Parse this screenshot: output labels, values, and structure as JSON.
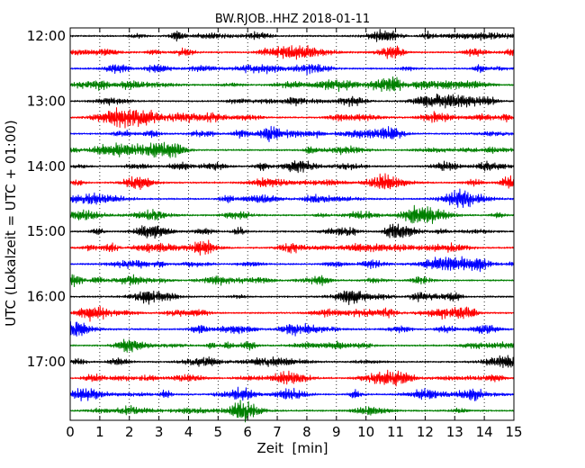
{
  "chart_data": {
    "type": "line",
    "title": "BW.RJOB..HHZ 2018-01-11",
    "xlabel": "Zeit  [min]",
    "ylabel": "UTC (Lokalzeit = UTC + 01:00)",
    "xlim": [
      0,
      15
    ],
    "x_ticks": [
      "0",
      "1",
      "2",
      "3",
      "4",
      "5",
      "6",
      "7",
      "8",
      "9",
      "10",
      "11",
      "12",
      "13",
      "14",
      "15"
    ],
    "y_tick_labels": [
      "12:00",
      "13:00",
      "14:00",
      "15:00",
      "16:00",
      "17:00"
    ],
    "grid": "vertical dotted",
    "trace_colors": [
      "#000000",
      "#ff0000",
      "#0000ff",
      "#008000"
    ],
    "rows": [
      {
        "start": "12:00",
        "color": "#000000"
      },
      {
        "start": "12:15",
        "color": "#ff0000"
      },
      {
        "start": "12:30",
        "color": "#0000ff"
      },
      {
        "start": "12:45",
        "color": "#008000"
      },
      {
        "start": "13:00",
        "color": "#000000"
      },
      {
        "start": "13:15",
        "color": "#ff0000"
      },
      {
        "start": "13:30",
        "color": "#0000ff"
      },
      {
        "start": "13:45",
        "color": "#008000"
      },
      {
        "start": "14:00",
        "color": "#000000"
      },
      {
        "start": "14:15",
        "color": "#ff0000"
      },
      {
        "start": "14:30",
        "color": "#0000ff"
      },
      {
        "start": "14:45",
        "color": "#008000"
      },
      {
        "start": "15:00",
        "color": "#000000"
      },
      {
        "start": "15:15",
        "color": "#ff0000"
      },
      {
        "start": "15:30",
        "color": "#0000ff"
      },
      {
        "start": "15:45",
        "color": "#008000"
      },
      {
        "start": "16:00",
        "color": "#000000"
      },
      {
        "start": "16:15",
        "color": "#ff0000"
      },
      {
        "start": "16:30",
        "color": "#0000ff"
      },
      {
        "start": "16:45",
        "color": "#008000"
      },
      {
        "start": "17:00",
        "color": "#000000"
      },
      {
        "start": "17:15",
        "color": "#ff0000"
      },
      {
        "start": "17:30",
        "color": "#0000ff"
      },
      {
        "start": "17:45",
        "color": "#008000"
      }
    ]
  }
}
